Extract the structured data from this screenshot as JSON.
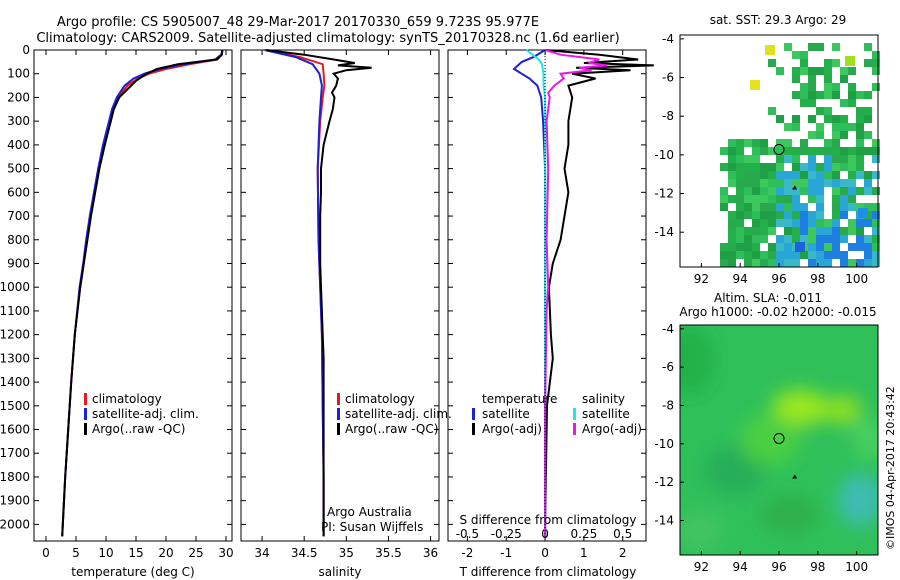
{
  "header": {
    "title_line1": "Argo profile: CS 5905007_48 29-Mar-2017 20170330_659 9.723S 95.977E",
    "title_line2": "Climatology: CARS2009. Satellite-adjusted climatology: synTS_20170328.nc (1.6d earlier)"
  },
  "depth_axis": {
    "ticks": [
      0,
      100,
      200,
      300,
      400,
      500,
      600,
      700,
      800,
      900,
      1000,
      1100,
      1200,
      1300,
      1400,
      1500,
      1600,
      1700,
      1800,
      1900,
      2000
    ],
    "range": [
      0,
      2070
    ]
  },
  "colors": {
    "climatology": "#e41a1c",
    "satellite": "#1f1fd6",
    "argo": "#000000",
    "sal_satellite": "#22e6e6",
    "sal_argo": "#e619e6"
  },
  "chart_data": [
    {
      "type": "line",
      "name": "temperature-profile",
      "xlabel": "temperature (deg C)",
      "xlim": [
        -2,
        31
      ],
      "xticks": [
        0,
        5,
        10,
        15,
        20,
        25,
        30
      ],
      "legend": [
        "climatology",
        "satellite-adj. clim.",
        "Argo(..raw -QC)"
      ],
      "series": [
        {
          "name": "climatology",
          "color": "#e41a1c",
          "depth": [
            0,
            20,
            40,
            60,
            80,
            100,
            120,
            150,
            200,
            250,
            300,
            400,
            500,
            600,
            700,
            800,
            900,
            1000,
            1200,
            1400,
            1600,
            1800,
            2000,
            2050
          ],
          "values": [
            29.4,
            29.3,
            28.6,
            24,
            20,
            17.2,
            15.3,
            13.6,
            12,
            11.2,
            10.6,
            9.6,
            8.8,
            8.1,
            7.4,
            6.8,
            6.3,
            5.7,
            4.8,
            4.2,
            3.7,
            3.2,
            2.8,
            2.7
          ]
        },
        {
          "name": "satellite-adj. clim.",
          "color": "#1f1fd6",
          "depth": [
            0,
            20,
            40,
            60,
            80,
            100,
            120,
            150,
            200,
            250,
            300,
            400,
            500,
            600,
            700,
            800,
            900,
            1000,
            1200,
            1400,
            1600,
            1800,
            2000,
            2050
          ],
          "values": [
            29.4,
            29.2,
            28.2,
            23,
            19,
            16.4,
            14.6,
            13.1,
            11.8,
            11,
            10.5,
            9.5,
            8.7,
            8,
            7.3,
            6.7,
            6.2,
            5.6,
            4.8,
            4.2,
            3.7,
            3.2,
            2.8,
            2.7
          ]
        },
        {
          "name": "Argo(..raw -QC)",
          "color": "#000000",
          "depth": [
            0,
            20,
            40,
            60,
            80,
            100,
            130,
            160,
            200,
            250,
            300,
            400,
            500,
            600,
            700,
            800,
            900,
            1000,
            1200,
            1400,
            1600,
            1800,
            2000,
            2050
          ],
          "values": [
            29.4,
            29.3,
            28.4,
            22,
            18.5,
            16.8,
            15,
            13.8,
            12.2,
            11.3,
            10.8,
            9.8,
            8.9,
            8.2,
            7.5,
            6.9,
            6.3,
            5.7,
            4.8,
            4.2,
            3.7,
            3.2,
            2.8,
            2.7
          ]
        }
      ]
    },
    {
      "type": "line",
      "name": "salinity-profile",
      "xlabel": "salinity",
      "xlim": [
        33.75,
        36.1
      ],
      "xticks": [
        34,
        34.5,
        35,
        35.5,
        36
      ],
      "xticklabels": [
        "34",
        "34.5",
        "35",
        "35.5",
        "36"
      ],
      "legend": [
        "climatology",
        "satellite-adj. clim.",
        "Argo(..raw -QC)"
      ],
      "annotation": [
        "Argo Australia",
        "PI: Susan Wijffels"
      ],
      "series": [
        {
          "name": "climatology",
          "color": "#e41a1c",
          "depth": [
            0,
            30,
            60,
            100,
            150,
            200,
            300,
            500,
            800,
            1000,
            1200,
            1500,
            1800,
            2000,
            2050
          ],
          "values": [
            34.05,
            34.45,
            34.72,
            34.73,
            34.74,
            34.72,
            34.69,
            34.66,
            34.67,
            34.69,
            34.71,
            34.72,
            34.73,
            34.73,
            34.73
          ]
        },
        {
          "name": "satellite-adj. clim.",
          "color": "#1f1fd6",
          "depth": [
            0,
            30,
            60,
            100,
            150,
            200,
            300,
            500,
            800,
            1000,
            1200,
            1500,
            1800,
            2000,
            2050
          ],
          "values": [
            34.03,
            34.4,
            34.6,
            34.68,
            34.71,
            34.7,
            34.68,
            34.66,
            34.67,
            34.69,
            34.71,
            34.72,
            34.73,
            34.73,
            34.73
          ]
        },
        {
          "name": "Argo(..raw -QC)",
          "color": "#000000",
          "depth": [
            0,
            20,
            40,
            55,
            65,
            75,
            85,
            100,
            120,
            150,
            180,
            200,
            250,
            300,
            400,
            500,
            600,
            700,
            800,
            900,
            1000,
            1100,
            1200,
            1300,
            1500,
            1800,
            2000,
            2050
          ],
          "values": [
            34.05,
            34.5,
            34.85,
            35.1,
            34.9,
            35.3,
            35,
            34.85,
            34.9,
            34.88,
            34.83,
            34.86,
            34.84,
            34.8,
            34.73,
            34.7,
            34.7,
            34.69,
            34.69,
            34.69,
            34.7,
            34.71,
            34.72,
            34.73,
            34.73,
            34.73,
            34.73,
            34.73
          ]
        }
      ]
    },
    {
      "type": "line",
      "name": "difference-profile",
      "xlabel": "T difference from climatology",
      "xlabel_top": "S difference from climatology",
      "xlim": [
        -2.5,
        2.6
      ],
      "xticks": [
        -2,
        -1,
        0,
        1,
        2
      ],
      "top_ticks": [
        "-0.5",
        "-0.25",
        "0",
        "0.25",
        "0.5"
      ],
      "legend_left": {
        "title": "temperature",
        "items": [
          "satellite",
          "Argo(-adj)"
        ]
      },
      "legend_right": {
        "title": "salinity",
        "items": [
          "satellite",
          "Argo(-adj)"
        ]
      },
      "series": [
        {
          "name": "T satellite",
          "color": "#1f1fd6",
          "depth": [
            0,
            30,
            50,
            80,
            120,
            150,
            200,
            300,
            500,
            800,
            1000,
            1500,
            2000,
            2050
          ],
          "values": [
            0,
            -0.3,
            -0.6,
            -0.8,
            -0.4,
            -0.2,
            -0.1,
            -0.05,
            0,
            0,
            0,
            0,
            0,
            0
          ]
        },
        {
          "name": "T Argo(-adj)",
          "color": "#000000",
          "depth": [
            0,
            20,
            40,
            55,
            65,
            75,
            85,
            100,
            120,
            150,
            200,
            300,
            400,
            500,
            600,
            700,
            800,
            900,
            1000,
            1200,
            1300,
            1500,
            2000,
            2050
          ],
          "values": [
            0,
            1.4,
            2.4,
            1,
            2.8,
            0.8,
            2.2,
            0.7,
            1.3,
            0.6,
            0.7,
            0.6,
            0.6,
            0.5,
            0.6,
            0.5,
            0.4,
            0.2,
            0.1,
            0.15,
            0.2,
            0.05,
            0,
            0
          ]
        },
        {
          "name": "S satellite",
          "color": "#22e6e6",
          "depth": [
            0,
            20,
            40,
            60,
            100,
            150,
            200,
            300,
            500,
            800,
            1000,
            1500,
            2000,
            2050
          ],
          "values": [
            -0.12,
            -0.08,
            -0.04,
            -0.02,
            -0.01,
            -0.01,
            0,
            0,
            0,
            0,
            0,
            0,
            0,
            0
          ]
        },
        {
          "name": "S Argo(-adj)",
          "color": "#e619e6",
          "depth": [
            0,
            20,
            40,
            55,
            65,
            75,
            85,
            100,
            120,
            150,
            180,
            200,
            300,
            500,
            800,
            1000,
            1100,
            1500,
            2000,
            2050
          ],
          "values": [
            0,
            0.1,
            0.35,
            0.28,
            0.4,
            0.22,
            0.3,
            0.1,
            0.12,
            0.06,
            0.02,
            0.03,
            0.01,
            0.02,
            0.01,
            0.02,
            0.01,
            0,
            0,
            0
          ]
        }
      ]
    },
    {
      "type": "heatmap",
      "name": "sst-map",
      "title": "sat. SST: 29.3 Argo: 29",
      "xticks": [
        92,
        94,
        96,
        98,
        100
      ],
      "yticks": [
        -4,
        -6,
        -8,
        -10,
        -12,
        -14
      ],
      "xlim": [
        90.9,
        101.1
      ],
      "ylim": [
        -15.8,
        -3.8
      ],
      "argo_marker": [
        96,
        -9.72
      ]
    },
    {
      "type": "heatmap",
      "name": "sla-map",
      "title_line1": "Altim. SLA: -0.011",
      "title_line2": "Argo h1000: -0.02 h2000: -0.015",
      "xticks": [
        92,
        94,
        96,
        98,
        100
      ],
      "yticks": [
        -4,
        -6,
        -8,
        -10,
        -12,
        -14
      ],
      "xlim": [
        90.9,
        101.1
      ],
      "ylim": [
        -15.8,
        -3.8
      ],
      "argo_marker": [
        96,
        -9.72
      ]
    }
  ],
  "credit": "©IMOS 04-Apr-2017 20:43:42"
}
